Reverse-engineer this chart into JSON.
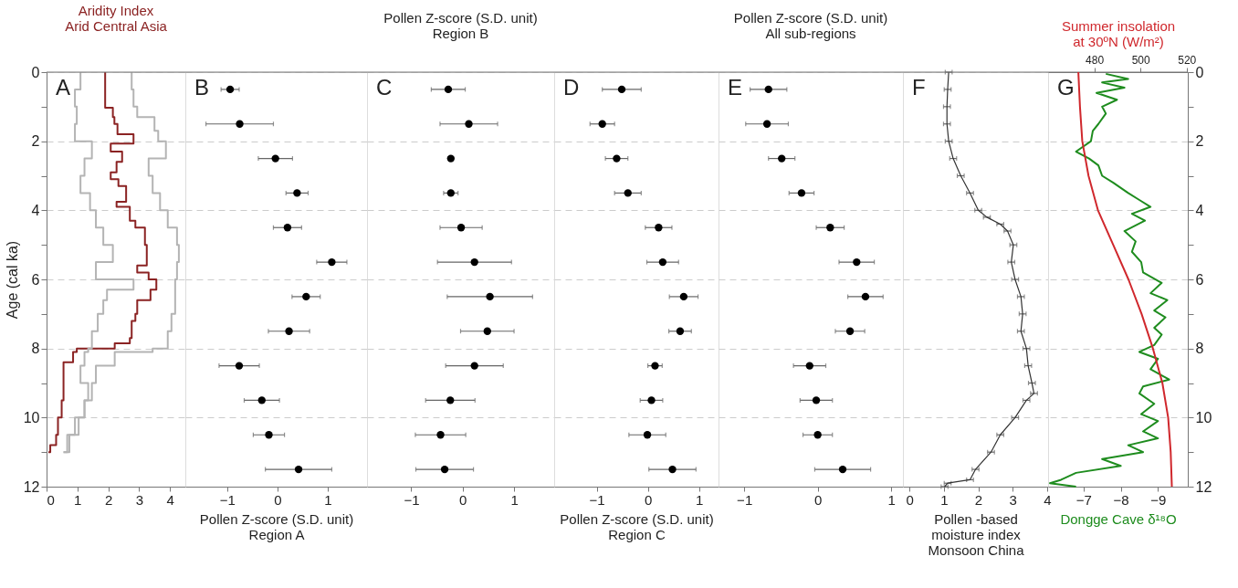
{
  "chart_data": [
    {
      "type": "step",
      "title": "Aridity Index\nArid Central Asia",
      "ylabel": "Age (cal ka)",
      "annotations": [
        "A"
      ],
      "xlim": [
        0,
        4.5
      ],
      "xticks": [
        0,
        1,
        2,
        3,
        4
      ],
      "ylim": [
        12,
        0
      ],
      "yticks": [
        0,
        {
          "value": 1,
          "label": null
        },
        2,
        {
          "value": 3,
          "label": null
        },
        4,
        {
          "value": 5,
          "label": null
        },
        6,
        {
          "value": 7,
          "label": null
        },
        8,
        {
          "value": 9,
          "label": null
        },
        10,
        {
          "value": 11,
          "label": null
        },
        12
      ],
      "grid": "y",
      "series": [
        {
          "color": "#8b2323",
          "x": [
            1.9,
            2.15,
            2.2,
            2.3,
            2.82,
            2.08,
            2.45,
            2.27,
            2.08,
            2.33,
            2.58,
            2.27,
            2.7,
            2.88,
            3.19,
            3.25,
            2.94,
            3.31,
            3.56,
            3.37,
            2.94,
            2.88,
            2.76,
            2.7,
            2.21,
            0.98,
            0.86,
            0.55,
            0.49,
            0.37,
            0.31,
            0.12,
            0.06
          ],
          "values": [
            0,
            1.03,
            1.3,
            1.5,
            1.8,
            2.07,
            2.3,
            2.6,
            2.9,
            3.1,
            3.3,
            3.75,
            3.9,
            4.3,
            4.5,
            5.0,
            5.6,
            5.8,
            6.0,
            6.3,
            6.6,
            7.0,
            7.2,
            7.7,
            7.85,
            8.0,
            8.1,
            8.4,
            9.5,
            10.0,
            10.5,
            10.8,
            11.0
          ]
        },
        {
          "color": "#b4b4b4",
          "x": [
            1.1,
            0.92,
            0.98,
            0.92,
            1.47,
            1.23,
            1.1,
            1.41,
            1.6,
            1.84,
            2.15,
            1.6,
            2.82,
            1.96,
            1.84,
            1.66,
            1.47,
            1.35,
            1.23,
            1.1,
            1.35,
            1.23,
            1.04,
            0.67,
            0.55
          ],
          "values": [
            0,
            0.5,
            1.0,
            1.5,
            2.0,
            2.5,
            3.0,
            3.5,
            4.0,
            4.5,
            5.0,
            5.5,
            6.0,
            6.3,
            6.6,
            7.0,
            7.5,
            8.0,
            8.1,
            8.5,
            9.0,
            9.5,
            10.0,
            10.5,
            11.0
          ]
        },
        {
          "color": "#b4b4b4",
          "x": [
            2.76,
            2.82,
            2.94,
            3.5,
            3.62,
            3.87,
            3.31,
            3.44,
            3.68,
            3.93,
            4.23,
            4.29,
            4.23,
            4.17,
            4.17,
            4.05,
            3.93,
            3.44,
            2.21,
            1.6,
            1.47,
            1.23,
            0.92,
            0.74,
            0.55
          ],
          "values": [
            0,
            0.5,
            1.0,
            1.3,
            1.7,
            2.0,
            2.5,
            3.0,
            3.5,
            4.0,
            4.5,
            5.0,
            5.5,
            6.0,
            6.5,
            7.0,
            7.5,
            8.0,
            8.1,
            8.5,
            9.0,
            9.5,
            10.0,
            10.5,
            11.0
          ]
        }
      ]
    },
    {
      "type": "scatter",
      "xlabel": "Pollen Z-score (S.D. unit)\nRegion A",
      "annotations": [
        "B"
      ],
      "marker": "circle",
      "color": "#000000",
      "xlim": [
        -1.83,
        1.78
      ],
      "xticks": [
        -1,
        0,
        1
      ],
      "ylim": [
        12,
        0
      ],
      "yticks": [
        0,
        2,
        4,
        6,
        8,
        10,
        12
      ],
      "grid": "y",
      "tick_labels": "x",
      "x": [
        -0.94,
        -0.75,
        -0.04,
        0.39,
        0.2,
        1.08,
        0.57,
        0.23,
        -0.76,
        -0.31,
        -0.17,
        0.42
      ],
      "values": [
        0.5,
        1.5,
        2.5,
        3.5,
        4.5,
        5.5,
        6.5,
        7.5,
        8.5,
        9.5,
        10.5,
        11.5
      ],
      "xerrors": [
        0.18,
        0.67,
        0.34,
        0.22,
        0.28,
        0.3,
        0.28,
        0.41,
        0.4,
        0.35,
        0.31,
        0.66
      ]
    },
    {
      "type": "scatter",
      "title": "Pollen Z-score (S.D. unit)\nRegion B",
      "annotations": [
        "C"
      ],
      "marker": "circle",
      "color": "#000000",
      "xlim": [
        -1.86,
        1.78
      ],
      "xticks": [
        -1,
        0,
        1
      ],
      "ylim": [
        12,
        0
      ],
      "yticks": [
        0,
        2,
        4,
        6,
        8,
        10,
        12
      ],
      "grid": "y",
      "tick_labels": "x",
      "x": [
        -0.28,
        0.12,
        -0.23,
        -0.23,
        -0.03,
        0.23,
        0.53,
        0.48,
        0.23,
        -0.24,
        -0.43,
        -0.35
      ],
      "values": [
        0.5,
        1.5,
        2.5,
        3.5,
        4.5,
        5.5,
        6.5,
        7.5,
        8.5,
        9.5,
        10.5,
        11.5
      ],
      "xerrors": [
        0.33,
        0.56,
        0.05,
        0.14,
        0.41,
        0.72,
        0.83,
        0.52,
        0.56,
        0.48,
        0.49,
        0.56
      ]
    },
    {
      "type": "scatter",
      "xlabel": "Pollen Z-score (S.D. unit)\nRegion C",
      "annotations": [
        "D"
      ],
      "marker": "circle",
      "color": "#000000",
      "xlim": [
        -1.83,
        1.38
      ],
      "xticks": [
        -1,
        0,
        1
      ],
      "ylim": [
        12,
        0
      ],
      "yticks": [
        0,
        2,
        4,
        6,
        8,
        10,
        12
      ],
      "grid": "y",
      "tick_labels": "x",
      "x": [
        -0.51,
        -0.89,
        -0.61,
        -0.39,
        0.21,
        0.29,
        0.7,
        0.63,
        0.14,
        0.07,
        -0.01,
        0.48
      ],
      "values": [
        0.5,
        1.5,
        2.5,
        3.5,
        4.5,
        5.5,
        6.5,
        7.5,
        8.5,
        9.5,
        10.5,
        11.5
      ],
      "xerrors": [
        0.38,
        0.24,
        0.22,
        0.26,
        0.26,
        0.31,
        0.28,
        0.22,
        0.14,
        0.22,
        0.36,
        0.46
      ]
    },
    {
      "type": "scatter",
      "title": "Pollen Z-score (S.D. unit)\nAll sub-regions",
      "annotations": [
        "E"
      ],
      "marker": "circle",
      "color": "#000000",
      "xlim": [
        -1.35,
        1.16
      ],
      "xticks": [
        -1,
        0,
        1
      ],
      "ylim": [
        12,
        0
      ],
      "yticks": [
        0,
        2,
        4,
        6,
        8,
        10,
        12
      ],
      "grid": "y",
      "tick_labels": "x",
      "x": [
        -0.67,
        -0.69,
        -0.49,
        -0.22,
        0.17,
        0.53,
        0.65,
        0.44,
        -0.11,
        -0.02,
        0.0,
        0.34
      ],
      "values": [
        0.5,
        1.5,
        2.5,
        3.5,
        4.5,
        5.5,
        6.5,
        7.5,
        8.5,
        9.5,
        10.5,
        11.5
      ],
      "xerrors": [
        0.25,
        0.29,
        0.18,
        0.17,
        0.19,
        0.24,
        0.24,
        0.2,
        0.22,
        0.22,
        0.2,
        0.38
      ]
    },
    {
      "type": "line",
      "xlabel": "Pollen -based\nmoisture index\nMonsoon China",
      "annotations": [
        "F"
      ],
      "color": "#333333",
      "xlim": [
        -0.19,
        4.03
      ],
      "xticks": [
        0,
        1,
        2,
        3,
        4
      ],
      "ylim": [
        12,
        0
      ],
      "yticks": [
        0,
        2,
        4,
        6,
        8,
        10,
        12
      ],
      "grid": "y",
      "tick_labels": "x",
      "x": [
        1.14,
        1.11,
        1.09,
        1.09,
        1.14,
        1.27,
        1.49,
        1.76,
        2.0,
        2.25,
        2.64,
        2.85,
        3.02,
        2.96,
        3.07,
        3.24,
        3.29,
        3.24,
        3.4,
        3.45,
        3.56,
        3.62,
        3.4,
        3.07,
        2.64,
        2.37,
        1.92,
        1.76,
        1.11,
        1.02
      ],
      "values": [
        0,
        0.5,
        1.0,
        1.5,
        2.0,
        2.5,
        3.0,
        3.5,
        4.0,
        4.2,
        4.4,
        4.6,
        5.0,
        5.5,
        6.0,
        6.5,
        7.0,
        7.5,
        8.0,
        8.5,
        9.0,
        9.3,
        9.5,
        10.0,
        10.5,
        11.0,
        11.5,
        11.8,
        11.9,
        12.0
      ],
      "xerrors": [
        0.1,
        0.1,
        0.1,
        0.1,
        0.1,
        0.1,
        0.1,
        0.1,
        0.1,
        0.1,
        0.1,
        0.1,
        0.1,
        0.1,
        0.1,
        0.1,
        0.1,
        0.1,
        0.1,
        0.1,
        0.1,
        0.1,
        0.1,
        0.1,
        0.1,
        0.1,
        0.1,
        0.1,
        0.1,
        0.1
      ]
    },
    {
      "type": "line",
      "xlabel": "Dongge Cave δ¹⁸O",
      "x2label": "Summer insolation\nat 30ºN (W/m²)",
      "annotations": [
        "G"
      ],
      "xlim": [
        -6.05,
        -9.8
      ],
      "xticks": [
        -7,
        -8,
        -9
      ],
      "x2lim": [
        460,
        520.5
      ],
      "x2ticks": [
        480,
        500,
        520
      ],
      "ylim": [
        12,
        0
      ],
      "yticks": [
        0,
        {
          "value": 1,
          "label": null
        },
        2,
        {
          "value": 3,
          "label": null
        },
        4,
        {
          "value": 5,
          "label": null
        },
        6,
        {
          "value": 7,
          "label": null
        },
        8,
        {
          "value": 9,
          "label": null
        },
        10,
        {
          "value": 11,
          "label": null
        },
        12
      ],
      "grid": "y",
      "series": [
        {
          "color": "#1e8c1e",
          "x": [
            -7.6,
            -8.2,
            -7.5,
            -8.1,
            -7.35,
            -7.9,
            -7.5,
            -7.6,
            -7.4,
            -7.25,
            -7.2,
            -6.8,
            -7.15,
            -7.4,
            -7.5,
            -7.8,
            -8.2,
            -8.5,
            -8.8,
            -8.3,
            -8.65,
            -8.1,
            -8.4,
            -8.3,
            -8.55,
            -8.6,
            -9.1,
            -8.8,
            -9.25,
            -8.9,
            -9.2,
            -8.9,
            -9.1,
            -8.9,
            -8.5,
            -9.0,
            -8.8,
            -9.3,
            -8.6,
            -8.5,
            -8.9,
            -8.55,
            -9.0,
            -8.6,
            -9.0,
            -8.2,
            -8.6,
            -7.5,
            -8.0,
            -6.8,
            -6.4,
            -6.1,
            -6.8
          ],
          "values": [
            0.05,
            0.2,
            0.3,
            0.45,
            0.6,
            0.8,
            1.0,
            1.2,
            1.5,
            1.7,
            2.0,
            2.3,
            2.5,
            2.7,
            3.0,
            3.2,
            3.5,
            3.7,
            3.9,
            4.1,
            4.3,
            4.6,
            4.9,
            5.2,
            5.5,
            5.8,
            6.1,
            6.4,
            6.6,
            6.9,
            7.1,
            7.4,
            7.6,
            7.9,
            8.1,
            8.3,
            8.6,
            8.9,
            9.1,
            9.3,
            9.6,
            9.9,
            10.1,
            10.4,
            10.6,
            10.8,
            11.0,
            11.2,
            11.4,
            11.6,
            11.8,
            11.9,
            12.0
          ]
        },
        {
          "color": "#d0282d",
          "axis": "x2",
          "x": [
            473.1,
            473.8,
            474.8,
            477.5,
            481.6,
            488.2,
            494.8,
            500.5,
            505.4,
            509.5,
            512,
            513.1,
            513.6
          ],
          "values": [
            0,
            1,
            2,
            3,
            4,
            5,
            6,
            7,
            8,
            9,
            10,
            11,
            12
          ]
        }
      ]
    }
  ]
}
